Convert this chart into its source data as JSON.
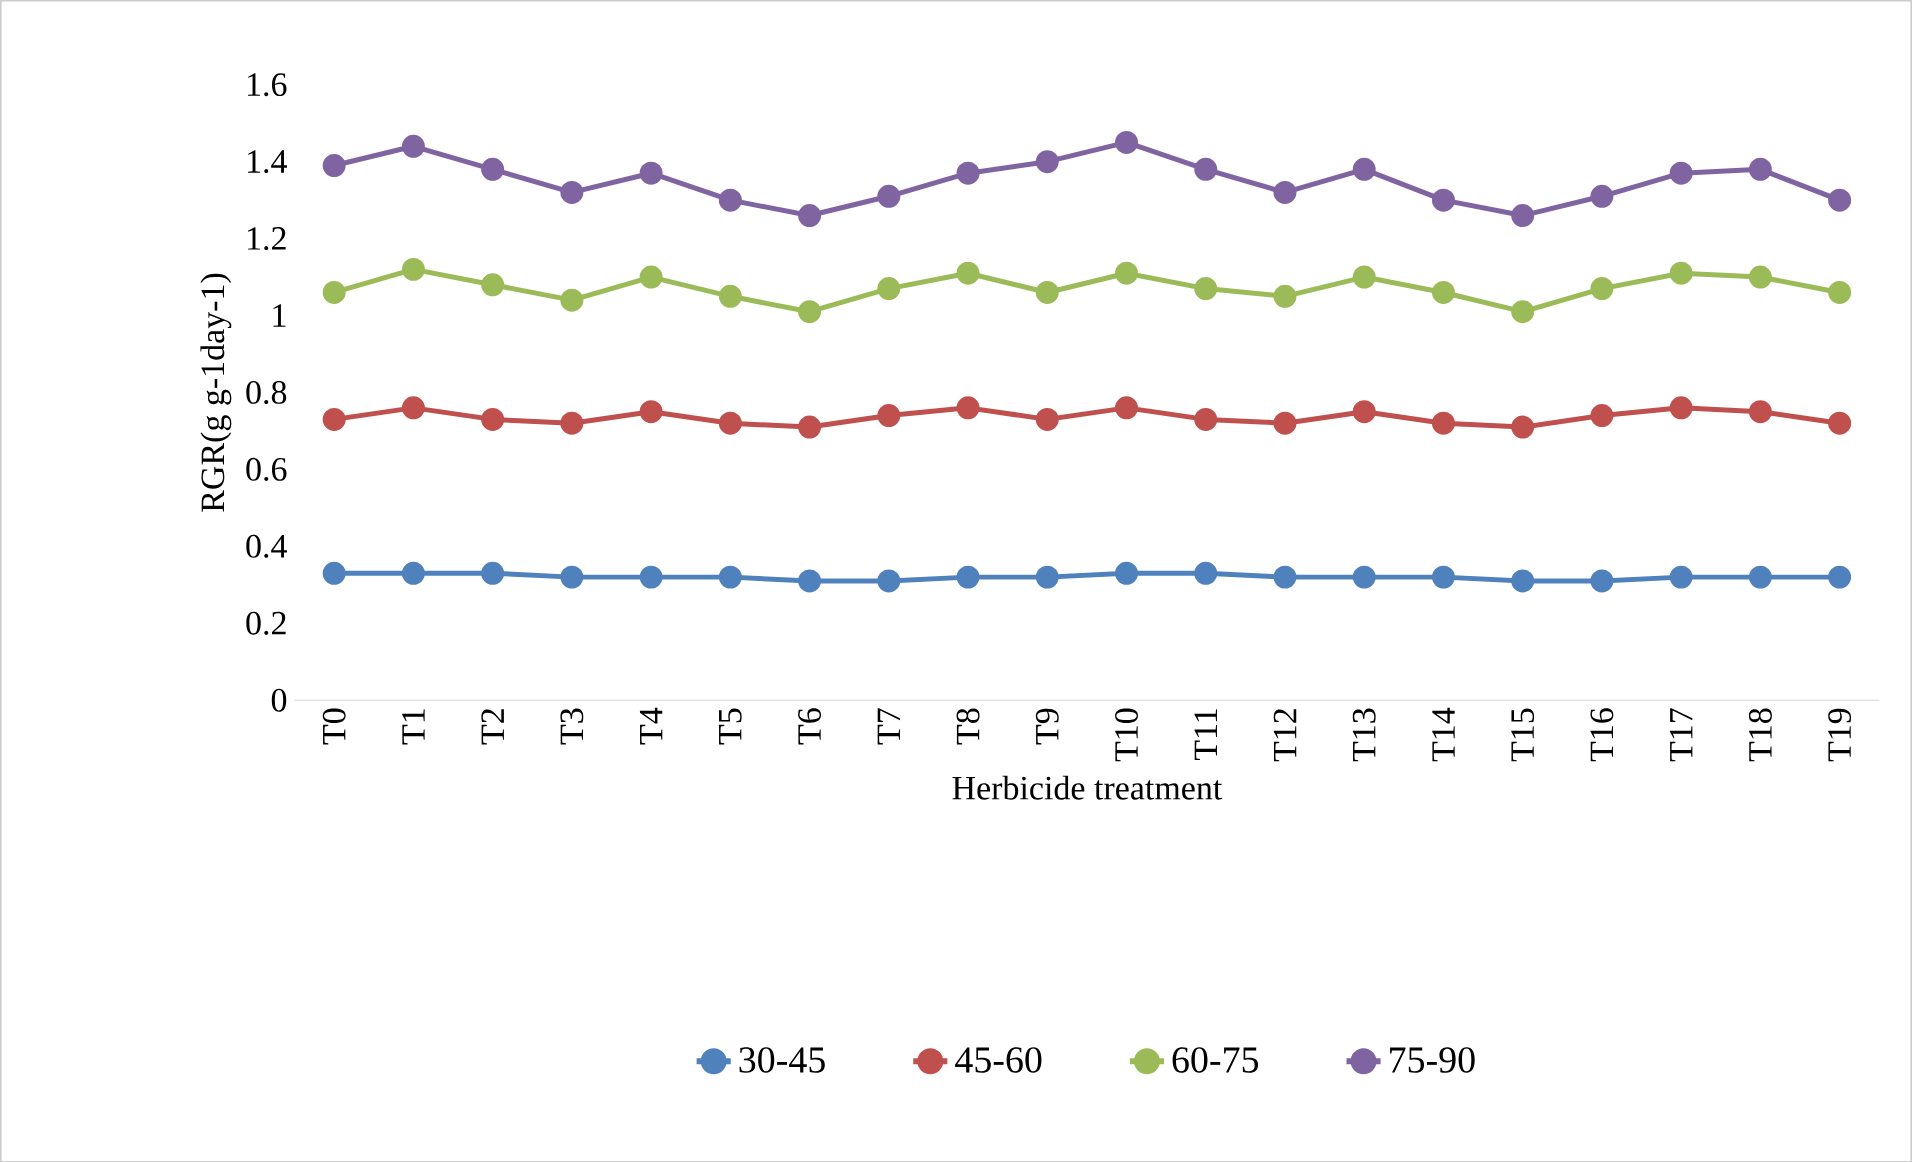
{
  "chart_data": {
    "type": "line",
    "xlabel": "Herbicide treatment",
    "ylabel": "RGR(g g-1day-1)",
    "categories": [
      "T0",
      "T1",
      "T2",
      "T3",
      "T4",
      "T5",
      "T6",
      "T7",
      "T8",
      "T9",
      "T10",
      "T11",
      "T12",
      "T13",
      "T14",
      "T15",
      "T16",
      "T17",
      "T18",
      "T19"
    ],
    "series": [
      {
        "name": "30-45",
        "color": "#4f81bd",
        "values": [
          0.33,
          0.33,
          0.33,
          0.32,
          0.32,
          0.32,
          0.31,
          0.31,
          0.32,
          0.32,
          0.33,
          0.33,
          0.32,
          0.32,
          0.32,
          0.31,
          0.31,
          0.32,
          0.32,
          0.32
        ]
      },
      {
        "name": "45-60",
        "color": "#c0504d",
        "values": [
          0.73,
          0.76,
          0.73,
          0.72,
          0.75,
          0.72,
          0.71,
          0.74,
          0.76,
          0.73,
          0.76,
          0.73,
          0.72,
          0.75,
          0.72,
          0.71,
          0.74,
          0.76,
          0.75,
          0.72
        ]
      },
      {
        "name": "60-75",
        "color": "#9bbb59",
        "values": [
          1.06,
          1.12,
          1.08,
          1.04,
          1.1,
          1.05,
          1.01,
          1.07,
          1.11,
          1.06,
          1.11,
          1.07,
          1.05,
          1.1,
          1.06,
          1.01,
          1.07,
          1.11,
          1.1,
          1.06
        ]
      },
      {
        "name": "75-90",
        "color": "#8064a2",
        "values": [
          1.39,
          1.44,
          1.38,
          1.32,
          1.37,
          1.3,
          1.26,
          1.31,
          1.37,
          1.4,
          1.45,
          1.38,
          1.32,
          1.38,
          1.3,
          1.26,
          1.31,
          1.37,
          1.38,
          1.3
        ]
      }
    ],
    "ylim": [
      0,
      1.6
    ],
    "yticks": [
      0,
      0.2,
      0.4,
      0.6,
      0.8,
      1,
      1.2,
      1.4,
      1.6
    ],
    "grid": false,
    "legend": "bottom",
    "marker": "circle",
    "line_style": "solid"
  }
}
